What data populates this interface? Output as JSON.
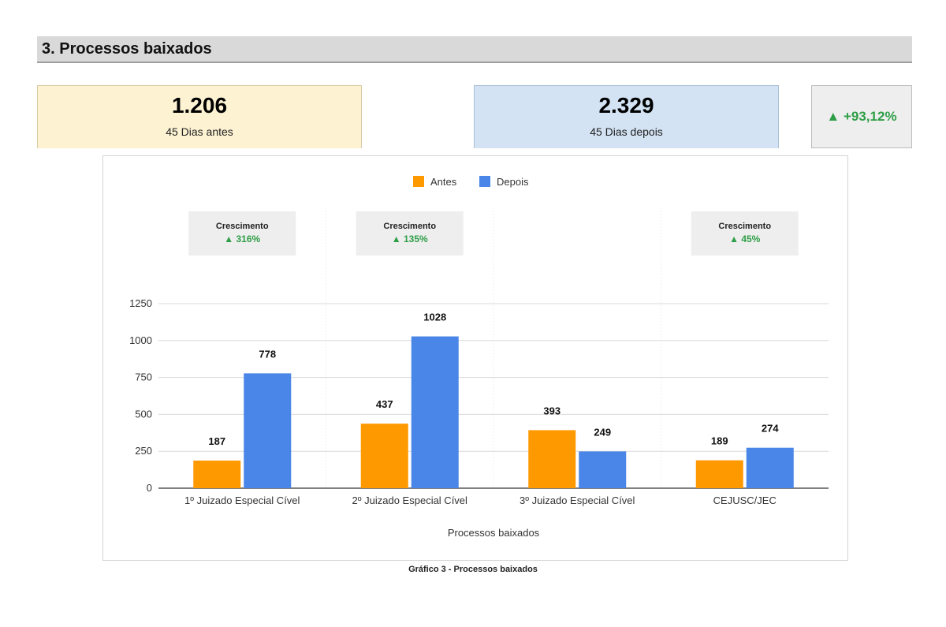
{
  "section": {
    "title": "3. Processos baixados"
  },
  "kpis": {
    "before": {
      "value": "1.206",
      "label": "45 Dias antes"
    },
    "after": {
      "value": "2.329",
      "label": "45 Dias depois"
    },
    "growth": "▲ +93,12%"
  },
  "colors": {
    "antes": "#ff9900",
    "depois": "#4a86e8",
    "growth_text": "#2e9e47",
    "grid": "#d9d9d9"
  },
  "chart_data": {
    "type": "bar",
    "title": "",
    "xlabel": "Processos baixados",
    "ylabel": "",
    "ylim": [
      0,
      1250
    ],
    "yticks": [
      0,
      250,
      500,
      750,
      1000,
      1250
    ],
    "categories": [
      "1º Juizado Especial Cível",
      "2º Juizado Especial Cível",
      "3º Juizado Especial Cível",
      "CEJUSC/JEC"
    ],
    "series": [
      {
        "name": "Antes",
        "values": [
          187,
          437,
          393,
          189
        ]
      },
      {
        "name": "Depois",
        "values": [
          778,
          1028,
          249,
          274
        ]
      }
    ],
    "legend_position": "top",
    "growth_boxes": [
      {
        "title": "Crescimento",
        "value": "▲ 316%"
      },
      {
        "title": "Crescimento",
        "value": "▲ 135%"
      },
      null,
      {
        "title": "Crescimento",
        "value": "▲ 45%"
      }
    ],
    "caption": "Gráfico 3 - Processos baixados"
  }
}
